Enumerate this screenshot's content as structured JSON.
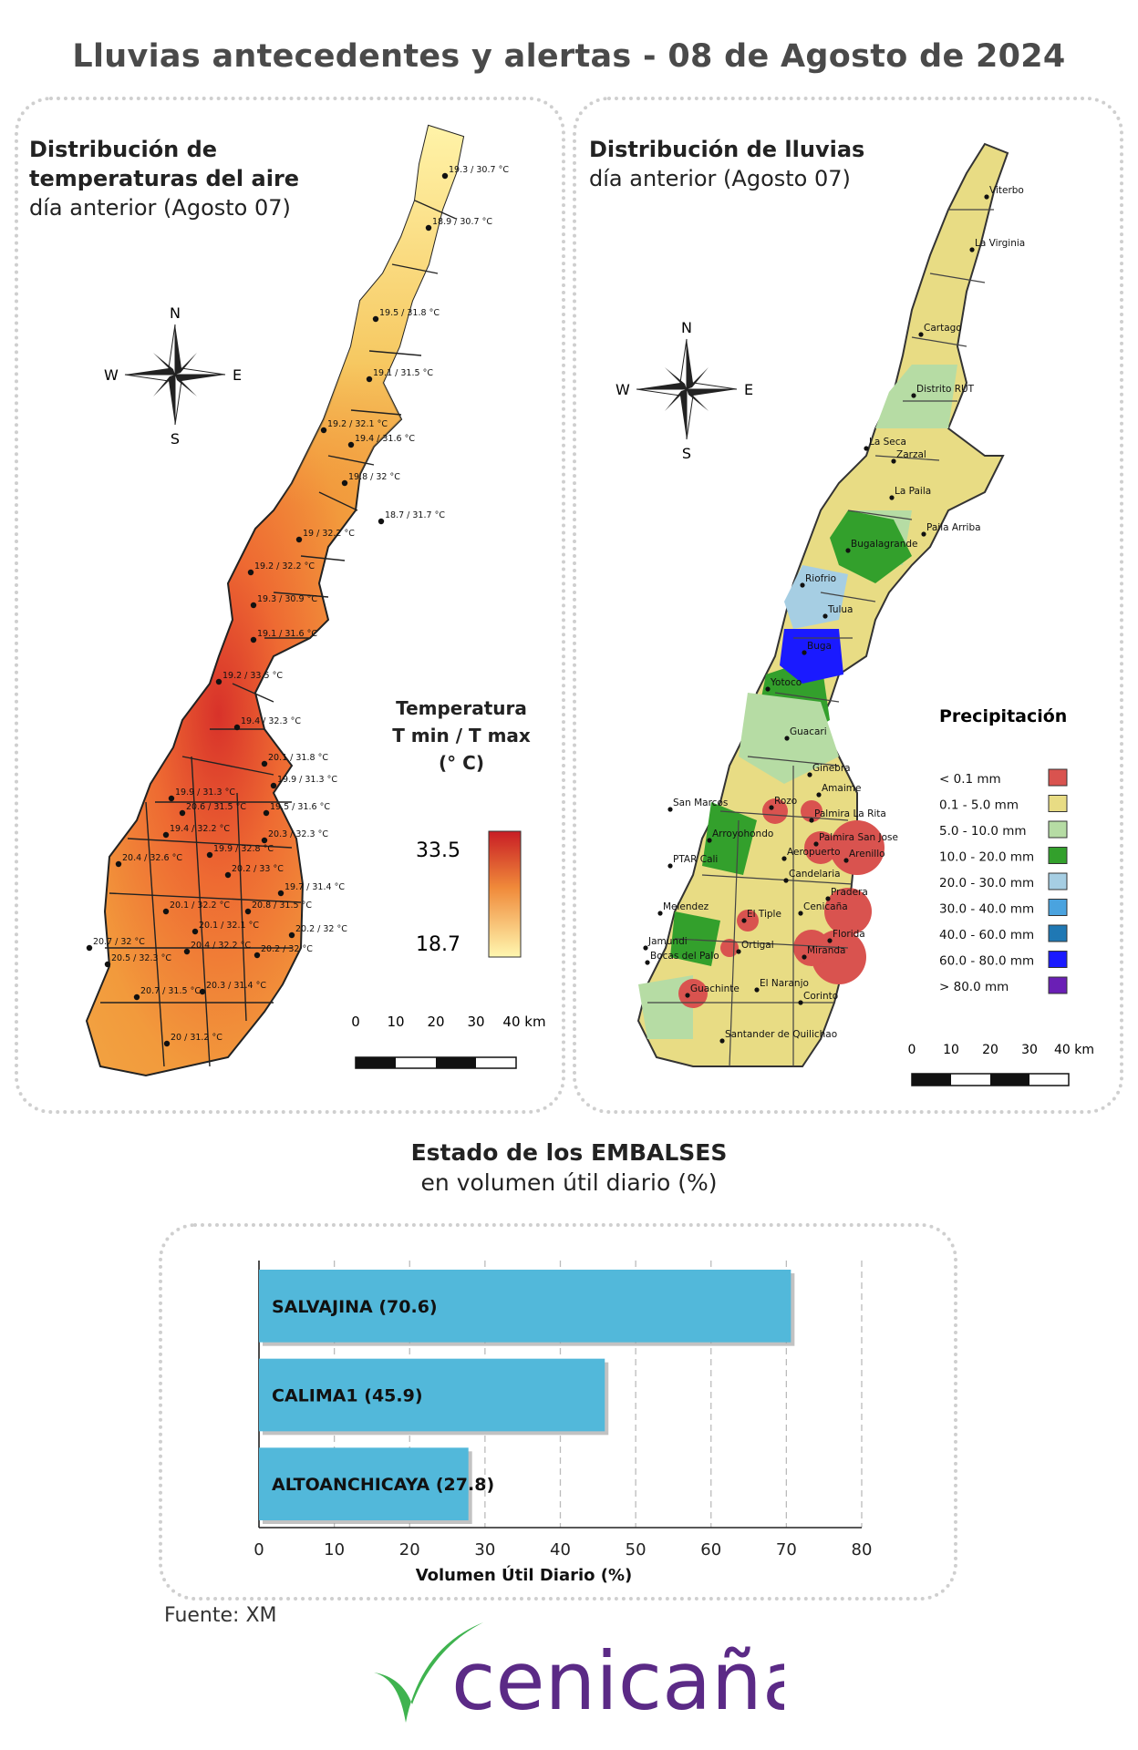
{
  "title": "Lluvias antecedentes y alertas - 08 de Agosto de 2024",
  "temperature_panel": {
    "title_bold_1": "Distribución de",
    "title_bold_2": "temperaturas del aire",
    "subtitle": "día anterior (Agosto 07)",
    "legend_title_1": "Temperatura",
    "legend_title_2": "T min / T max",
    "legend_title_3": "(° C)",
    "legend_max": "33.5",
    "legend_min": "18.7",
    "colors": {
      "low": "#fff7b0",
      "mid": "#f6a33a",
      "high": "#c81d25"
    },
    "stations": [
      "19.3 / 30.7 °C",
      "18.9 / 30.7 °C",
      "19.5 / 31.8 °C",
      "19.1 / 31.5 °C",
      "19.2 / 32.1 °C",
      "19.4 / 31.6 °C",
      "19.8 / 32 °C",
      "18.7 / 31.7 °C",
      "19 / 32.2 °C",
      "19.2 / 32.2 °C",
      "19.3 / 30.9 °C",
      "19.1 / 31.6 °C",
      "19.2 / 33.5 °C",
      "19.4 / 32.3 °C",
      "20.1 / 31.8 °C",
      "19.9 / 31.3 °C",
      "19.9 / 31.3 °C",
      "20.6 / 31.5 °C",
      "19.5 / 31.6 °C",
      "19.4 / 32.2 °C",
      "20.3 / 32.3 °C",
      "20.4 / 32.6 °C",
      "19.9 / 32.8 °C",
      "20.2 / 33 °C",
      "19.7 / 31.4 °C",
      "20.1 / 32.2 °C",
      "20.8 / 31.5 °C",
      "20.1 / 32.1 °C",
      "20.2 / 32 °C",
      "20.7 / 32 °C",
      "20.4 / 32.2 °C",
      "20.5 / 32.3 °C",
      "20.2 / 32 °C",
      "20.7 / 31.5 °C",
      "20.3 / 31.4 °C",
      "20 / 31.2 °C"
    ]
  },
  "rain_panel": {
    "title_bold": "Distribución de lluvias",
    "subtitle": "día anterior (Agosto 07)",
    "legend_title": "Precipitación",
    "legend": [
      {
        "label": "< 0.1 mm",
        "color": "#d9534f"
      },
      {
        "label": "0.1 - 5.0 mm",
        "color": "#e8dc84"
      },
      {
        "label": "5.0 - 10.0 mm",
        "color": "#b6dca4"
      },
      {
        "label": "10.0 - 20.0 mm",
        "color": "#33a02c"
      },
      {
        "label": "20.0 - 30.0 mm",
        "color": "#a6cee3"
      },
      {
        "label": "30.0 - 40.0 mm",
        "color": "#4aa3df"
      },
      {
        "label": "40.0 - 60.0 mm",
        "color": "#1f78b4"
      },
      {
        "label": "60.0 - 80.0 mm",
        "color": "#1a1aff"
      },
      {
        "label": "> 80.0 mm",
        "color": "#6a1fb5"
      }
    ],
    "stations": [
      "Viterbo",
      "La Virginia",
      "Cartago",
      "Distrito RUT",
      "La Seca",
      "Zarzal",
      "La Paila",
      "Paila Arriba",
      "Bugalagrande",
      "Riofrio",
      "Tulua",
      "Buga",
      "Yotoco",
      "Guacari",
      "Ginebra",
      "Amaime",
      "San Marcos",
      "Rozo",
      "Palmira La Rita",
      "Arroyohondo",
      "Palmira San Jose",
      "PTAR Cali",
      "Aeropuerto",
      "Arenillo",
      "Candelaria",
      "Pradera",
      "Melendez",
      "El Tiple",
      "Cenicaña",
      "Florida",
      "Jamundi",
      "Bocas del Palo",
      "Ortigal",
      "Miranda",
      "El Naranjo",
      "Guachinte",
      "Corinto",
      "Santander de Quilichao"
    ]
  },
  "compass": {
    "n": "N",
    "s": "S",
    "e": "E",
    "w": "W"
  },
  "scale": {
    "ticks": [
      "0",
      "10",
      "20",
      "30",
      "40 km"
    ]
  },
  "chart_title_bold": "Estado de los EMBALSES",
  "chart_title_sub": "en volumen útil diario (%)",
  "chart_data": {
    "type": "bar",
    "orientation": "horizontal",
    "categories": [
      "SALVAJINA (70.6)",
      "CALIMA1 (45.9)",
      "ALTOANCHICAYA (27.8)"
    ],
    "values": [
      70.6,
      45.9,
      27.8
    ],
    "xlabel": "Volumen Útil Diario (%)",
    "xlim": [
      0,
      80
    ],
    "xticks": [
      "0",
      "10",
      "20",
      "30",
      "40",
      "50",
      "60",
      "70",
      "80"
    ],
    "bar_color": "#52b8da",
    "grid": true
  },
  "source": "Fuente: XM",
  "brand": {
    "name": "cenicaña",
    "color": "#5b2a86",
    "leaf_color": "#3fb34f"
  }
}
